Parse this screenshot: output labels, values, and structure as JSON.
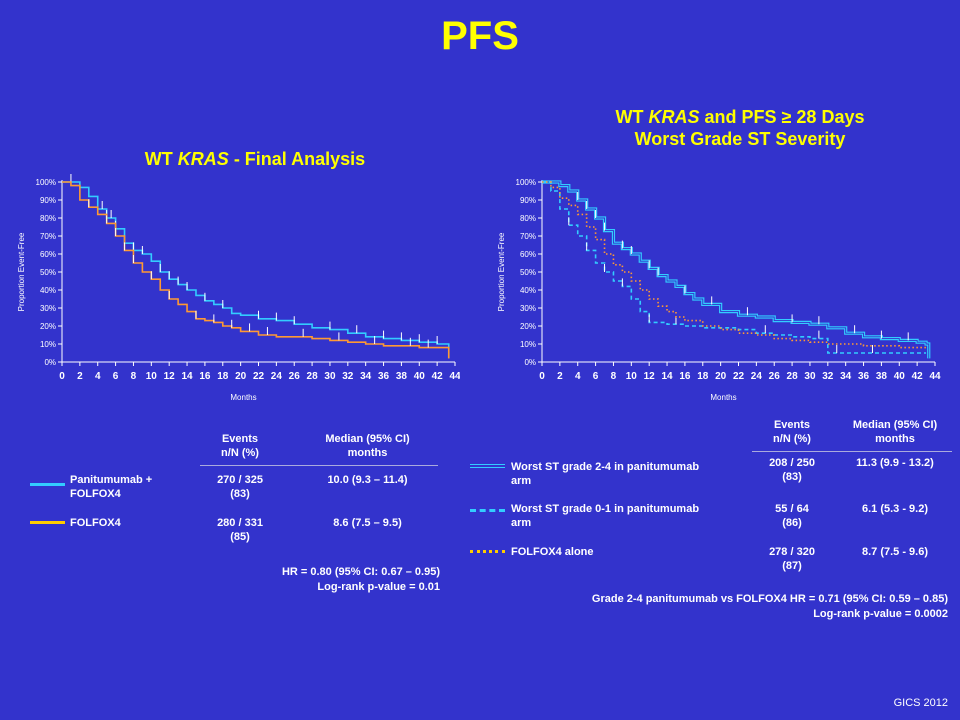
{
  "page": {
    "title": "PFS",
    "credit": "GICS 2012"
  },
  "left": {
    "title_prefix": "WT ",
    "title_italic": "KRAS",
    "title_suffix": " - Final Analysis",
    "table": {
      "headers": [
        "Events\nn/N (%)",
        "Median (95% CI)\nmonths"
      ],
      "rows": [
        {
          "label": "Panitumumab +\nFOLFOX4",
          "events": "270 / 325\n(83)",
          "median": "10.0 (9.3 – 11.4)",
          "color": "#33ccff",
          "style": "solid"
        },
        {
          "label": "FOLFOX4",
          "events": "280 / 331\n(85)",
          "median": "8.6 (7.5 – 9.5)",
          "color": "#ffcc00",
          "style": "solid"
        }
      ]
    },
    "stats": [
      "HR = 0.80 (95% CI: 0.67 – 0.95)",
      "Log-rank p-value = 0.01"
    ]
  },
  "right": {
    "title_line1_prefix": "WT ",
    "title_line1_italic": "KRAS",
    "title_line1_suffix": " and PFS ≥ 28 Days",
    "title_line2": "Worst Grade ST Severity",
    "table": {
      "headers": [
        "Events\nn/N (%)",
        "Median (95% CI)\nmonths"
      ],
      "rows": [
        {
          "label": "Worst ST grade 2-4 in panitumumab\narm",
          "events": "208 / 250\n(83)",
          "median": "11.3 (9.9 - 13.2)",
          "color": "#33ccff",
          "style": "double"
        },
        {
          "label": "Worst ST grade 0-1 in panitumumab\narm",
          "events": "55 / 64\n(86)",
          "median": "6.1 (5.3 - 9.2)",
          "color": "#33ccff",
          "style": "dashed"
        },
        {
          "label": "FOLFOX4 alone",
          "events": "278 / 320\n(87)",
          "median": "8.7 (7.5 - 9.6)",
          "color": "#ffcc00",
          "style": "dotted"
        }
      ]
    },
    "stats": [
      "Grade 2-4 panitumumab vs FOLFOX4 HR = 0.71 (95% CI: 0.59 – 0.85)",
      "Log-rank p-value = 0.0002"
    ]
  },
  "chart_data": [
    {
      "type": "line",
      "title": "WT KRAS - Final Analysis",
      "xlabel": "Months",
      "ylabel": "Proportion Event-Free",
      "xlim": [
        0,
        44
      ],
      "ylim": [
        0,
        100
      ],
      "xticks": [
        "0",
        "2",
        "4",
        "6",
        "8",
        "10",
        "12",
        "14",
        "16",
        "18",
        "20",
        "22",
        "24",
        "26",
        "28",
        "30",
        "32",
        "34",
        "36",
        "38",
        "40",
        "42",
        "44"
      ],
      "yticks": [
        "0%",
        "10%",
        "20%",
        "30%",
        "40%",
        "50%",
        "60%",
        "70%",
        "80%",
        "90%",
        "100%"
      ],
      "series": [
        {
          "name": "Panitumumab + FOLFOX4",
          "color": "#33ccff",
          "style": "solid",
          "x": [
            0,
            2,
            3,
            4,
            5,
            6,
            7,
            8,
            9,
            10,
            11,
            12,
            13,
            14,
            15,
            16,
            17,
            18,
            19,
            20,
            22,
            24,
            26,
            28,
            30,
            32,
            34,
            36,
            38,
            40,
            42,
            43,
            43.3
          ],
          "y": [
            100,
            97,
            92,
            85,
            80,
            74,
            66,
            62,
            60,
            56,
            50,
            46,
            43,
            40,
            37,
            34,
            32,
            30,
            27,
            26,
            24,
            23,
            21,
            19,
            18,
            16,
            14,
            13,
            12,
            11,
            10,
            10,
            2
          ],
          "censor_x": [
            1,
            4.5,
            5,
            5.5,
            6,
            8,
            9,
            11,
            12,
            13,
            14,
            16,
            18,
            22,
            24,
            26,
            30,
            33,
            36,
            38,
            40,
            42
          ]
        },
        {
          "name": "FOLFOX4",
          "color": "#ff9933",
          "style": "solid",
          "x": [
            0,
            1,
            2,
            3,
            4,
            5,
            6,
            7,
            8,
            9,
            10,
            11,
            12,
            13,
            14,
            15,
            16,
            17,
            18,
            19,
            20,
            22,
            24,
            26,
            28,
            30,
            32,
            34,
            36,
            38,
            40,
            42,
            43,
            43.3
          ],
          "y": [
            100,
            98,
            90,
            86,
            82,
            77,
            70,
            62,
            55,
            50,
            46,
            40,
            35,
            32,
            28,
            24,
            23,
            22,
            20,
            19,
            17,
            15,
            14,
            14,
            13,
            12,
            11,
            10,
            9,
            9,
            8,
            8,
            8,
            2
          ],
          "censor_x": [
            3,
            5,
            6,
            7,
            8,
            10,
            12,
            15,
            17,
            19,
            21,
            23,
            27,
            31,
            35,
            39,
            41
          ]
        }
      ]
    },
    {
      "type": "line",
      "title": "WT KRAS and PFS ≥ 28 Days Worst Grade ST Severity",
      "xlabel": "Months",
      "ylabel": "Proportion Event-Free",
      "xlim": [
        0,
        44
      ],
      "ylim": [
        0,
        100
      ],
      "xticks": [
        "0",
        "2",
        "4",
        "6",
        "8",
        "10",
        "12",
        "14",
        "16",
        "18",
        "20",
        "22",
        "24",
        "26",
        "28",
        "30",
        "32",
        "34",
        "36",
        "38",
        "40",
        "42",
        "44"
      ],
      "yticks": [
        "0%",
        "10%",
        "20%",
        "30%",
        "40%",
        "50%",
        "60%",
        "70%",
        "80%",
        "90%",
        "100%"
      ],
      "series": [
        {
          "name": "Worst ST grade 2-4 in panitumumab arm",
          "color": "#33ccff",
          "style": "double",
          "x": [
            0,
            2,
            3,
            4,
            5,
            6,
            7,
            8,
            9,
            10,
            11,
            12,
            13,
            14,
            15,
            16,
            17,
            18,
            20,
            22,
            24,
            26,
            28,
            30,
            32,
            34,
            36,
            38,
            40,
            42,
            43,
            43.3
          ],
          "y": [
            100,
            98,
            95,
            90,
            85,
            80,
            73,
            66,
            63,
            60,
            56,
            52,
            48,
            45,
            42,
            38,
            35,
            32,
            28,
            26,
            25,
            23,
            22,
            21,
            19,
            16,
            14,
            13,
            12,
            11,
            10,
            2
          ],
          "censor_x": [
            4,
            5,
            6,
            7,
            9,
            10,
            12,
            13,
            16,
            19,
            23,
            28,
            31,
            35,
            38,
            41
          ]
        },
        {
          "name": "Worst ST grade 0-1 in panitumumab arm",
          "color": "#33ccff",
          "style": "dashed",
          "x": [
            0,
            1,
            2,
            3,
            4,
            5,
            6,
            7,
            8,
            9,
            10,
            11,
            12,
            14,
            16,
            18,
            20,
            22,
            24,
            26,
            28,
            30,
            32,
            34,
            36,
            38,
            40,
            43
          ],
          "y": [
            100,
            95,
            85,
            76,
            70,
            62,
            55,
            50,
            45,
            42,
            35,
            28,
            22,
            21,
            20,
            19,
            19,
            18,
            16,
            15,
            14,
            13,
            5,
            5,
            5,
            5,
            5,
            5
          ],
          "censor_x": [
            3,
            5,
            7,
            9,
            12,
            15,
            25,
            31,
            33,
            37
          ]
        },
        {
          "name": "FOLFOX4 alone",
          "color": "#ff9933",
          "style": "dotted",
          "x": [
            0,
            1,
            2,
            3,
            4,
            5,
            6,
            7,
            8,
            9,
            10,
            11,
            12,
            13,
            14,
            15,
            16,
            18,
            20,
            22,
            24,
            26,
            28,
            30,
            32,
            34,
            36,
            38,
            40,
            42,
            43
          ],
          "y": [
            100,
            97,
            91,
            87,
            82,
            75,
            68,
            60,
            54,
            50,
            45,
            40,
            35,
            31,
            28,
            25,
            23,
            20,
            18,
            16,
            15,
            13,
            12,
            11,
            10,
            10,
            9,
            9,
            8,
            8,
            8
          ],
          "censor_x": []
        }
      ]
    }
  ]
}
